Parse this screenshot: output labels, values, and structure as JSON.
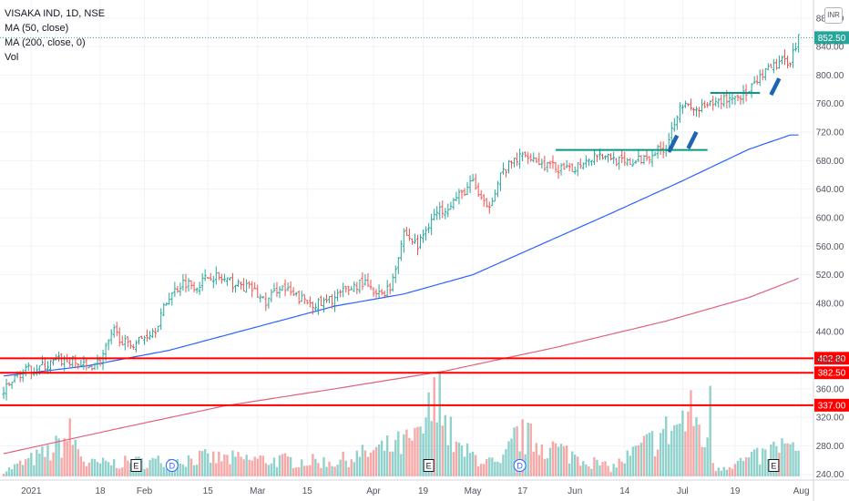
{
  "legend": {
    "symbol": "VISAKA IND, 1D, NSE",
    "ma50": "MA (50, close)",
    "ma200": "MA (200, close, 0)",
    "vol": "Vol"
  },
  "currency": "INR",
  "colors": {
    "up": "#26a69a",
    "down": "#ef5350",
    "ma50": "#2962ff",
    "ma200": "#e0627b",
    "level": "#ff0000",
    "trendline": "#089981",
    "price_label": "#26a69a",
    "marker": "#1e64b4"
  },
  "chart_data": {
    "type": "ohlc",
    "yaxis": {
      "ticks": [
        "240.00",
        "280.00",
        "320.00",
        "360.00",
        "400.00",
        "440.00",
        "480.00",
        "520.00",
        "560.00",
        "600.00",
        "640.00",
        "680.00",
        "720.00",
        "760.00",
        "800.00",
        "840.00",
        "880.00"
      ],
      "ylim": [
        232,
        890
      ]
    },
    "xaxis": {
      "ticks": [
        "2021",
        "18",
        "Feb",
        "15",
        "Mar",
        "15",
        "Apr",
        "19",
        "May",
        "17",
        "Jun",
        "14",
        "Jul",
        "19",
        "Aug"
      ]
    },
    "last_price": "852.50",
    "levels": [
      {
        "label": "402.80",
        "value": 402.8
      },
      {
        "label": "382.50",
        "value": 382.5
      },
      {
        "label": "337.00",
        "value": 337.0
      }
    ],
    "trendlines": [
      {
        "from": 695,
        "to": 695
      },
      {
        "from": 775,
        "to": 775
      }
    ],
    "close_trend": [
      [
        0,
        355
      ],
      [
        5,
        380
      ],
      [
        10,
        388
      ],
      [
        15,
        392
      ],
      [
        20,
        400
      ],
      [
        25,
        398
      ],
      [
        30,
        390
      ],
      [
        35,
        400
      ],
      [
        40,
        440
      ],
      [
        45,
        420
      ],
      [
        50,
        430
      ],
      [
        55,
        445
      ],
      [
        60,
        490
      ],
      [
        65,
        510
      ],
      [
        70,
        505
      ],
      [
        75,
        520
      ],
      [
        80,
        512
      ],
      [
        85,
        505
      ],
      [
        90,
        500
      ],
      [
        95,
        480
      ],
      [
        100,
        505
      ],
      [
        105,
        490
      ],
      [
        110,
        482
      ],
      [
        115,
        478
      ],
      [
        120,
        488
      ],
      [
        125,
        500
      ],
      [
        130,
        510
      ],
      [
        135,
        490
      ],
      [
        140,
        502
      ],
      [
        145,
        580
      ],
      [
        150,
        560
      ],
      [
        155,
        600
      ],
      [
        160,
        615
      ],
      [
        165,
        630
      ],
      [
        170,
        650
      ],
      [
        175,
        610
      ],
      [
        180,
        660
      ],
      [
        185,
        680
      ],
      [
        190,
        690
      ],
      [
        195,
        675
      ],
      [
        200,
        670
      ],
      [
        205,
        665
      ],
      [
        210,
        680
      ],
      [
        215,
        690
      ],
      [
        220,
        685
      ],
      [
        225,
        675
      ],
      [
        230,
        680
      ],
      [
        235,
        690
      ],
      [
        240,
        700
      ],
      [
        245,
        760
      ],
      [
        250,
        750
      ],
      [
        255,
        755
      ],
      [
        260,
        765
      ],
      [
        265,
        770
      ],
      [
        270,
        775
      ],
      [
        275,
        800
      ],
      [
        280,
        815
      ],
      [
        285,
        822
      ],
      [
        288,
        852.5
      ]
    ],
    "ma50_points": [
      [
        0,
        378
      ],
      [
        30,
        392
      ],
      [
        60,
        414
      ],
      [
        90,
        445
      ],
      [
        120,
        476
      ],
      [
        145,
        493
      ],
      [
        170,
        520
      ],
      [
        195,
        563
      ],
      [
        220,
        606
      ],
      [
        245,
        650
      ],
      [
        270,
        696
      ],
      [
        285,
        716
      ]
    ],
    "ma200_points": [
      [
        0,
        269
      ],
      [
        40,
        303
      ],
      [
        80,
        336
      ],
      [
        120,
        360
      ],
      [
        160,
        385
      ],
      [
        200,
        418
      ],
      [
        240,
        455
      ],
      [
        270,
        488
      ],
      [
        288,
        515
      ]
    ],
    "volume_ylim": [
      0,
      100
    ],
    "volume_trend": [
      [
        0,
        5
      ],
      [
        18,
        25
      ],
      [
        24,
        40
      ],
      [
        30,
        12
      ],
      [
        60,
        15
      ],
      [
        70,
        18
      ],
      [
        120,
        14
      ],
      [
        150,
        35
      ],
      [
        156,
        70
      ],
      [
        165,
        25
      ],
      [
        180,
        10
      ],
      [
        186,
        40
      ],
      [
        220,
        8
      ],
      [
        250,
        60
      ],
      [
        258,
        8
      ],
      [
        275,
        20
      ],
      [
        282,
        30
      ],
      [
        288,
        22
      ]
    ],
    "events": [
      {
        "label": "E",
        "x": 48,
        "kind": "earnings"
      },
      {
        "label": "D",
        "x": 61,
        "kind": "dividend"
      },
      {
        "label": "E",
        "x": 154,
        "kind": "earnings"
      },
      {
        "label": "D",
        "x": 187,
        "kind": "dividend"
      },
      {
        "label": "E",
        "x": 279,
        "kind": "earnings"
      }
    ]
  }
}
